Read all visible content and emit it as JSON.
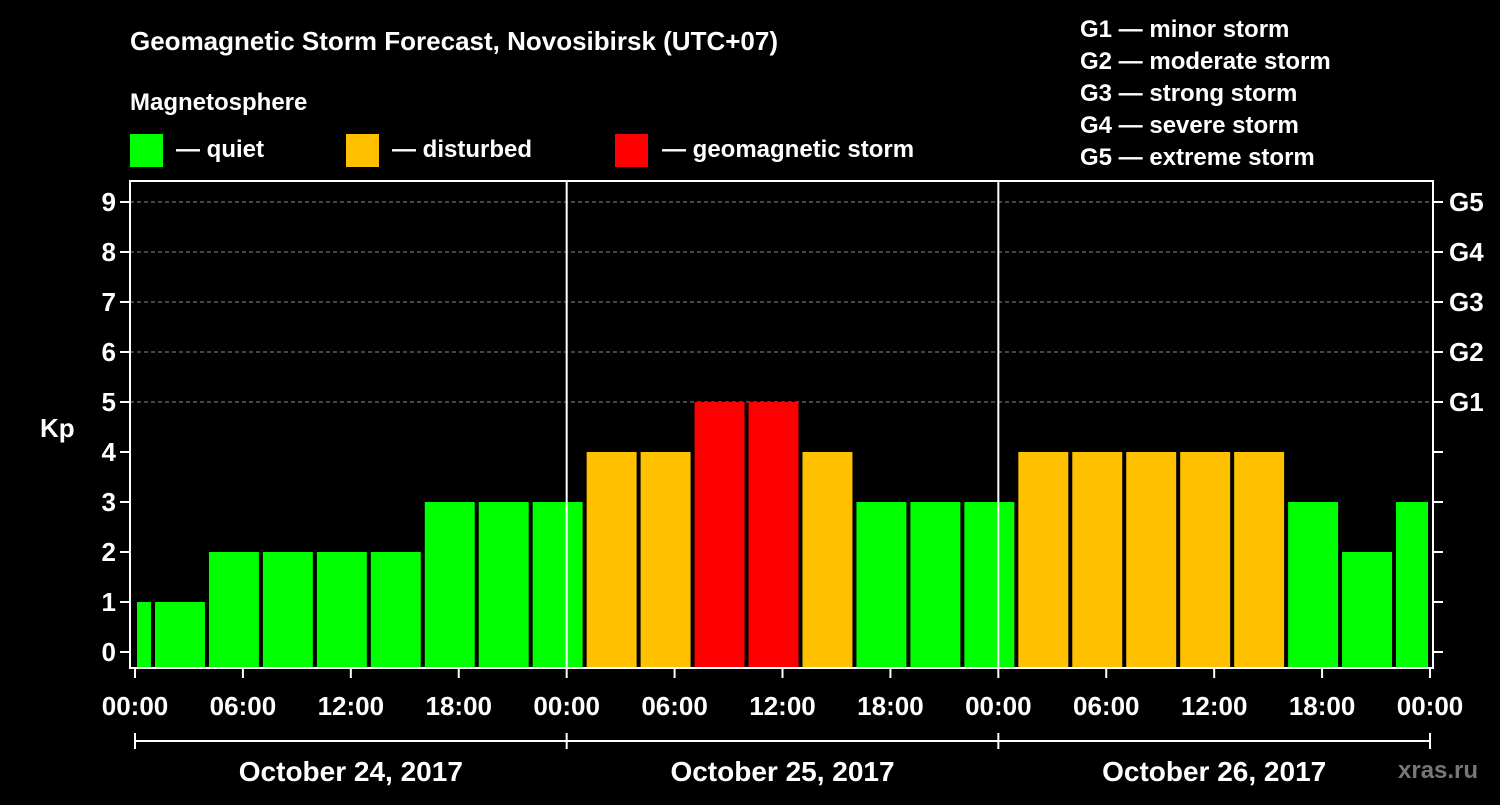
{
  "title": "Geomagnetic Storm Forecast, Novosibirsk (UTC+07)",
  "legend": {
    "heading": "Magnetosphere",
    "items": [
      {
        "label": "— quiet",
        "color": "#00ff00"
      },
      {
        "label": "— disturbed",
        "color": "#ffc000"
      },
      {
        "label": "— geomagnetic storm",
        "color": "#ff0000"
      }
    ]
  },
  "storm_scale": [
    "G1 — minor storm",
    "G2 — moderate storm",
    "G3 — strong storm",
    "G4 — severe storm",
    "G5 — extreme storm"
  ],
  "watermark": "xras.ru",
  "chart_data": {
    "type": "bar",
    "ylabel": "Kp",
    "ylim": [
      0,
      9
    ],
    "yticks": [
      0,
      1,
      2,
      3,
      4,
      5,
      6,
      7,
      8,
      9
    ],
    "right_axis_ticks": [
      {
        "kp": 5,
        "label": "G1"
      },
      {
        "kp": 6,
        "label": "G2"
      },
      {
        "kp": 7,
        "label": "G3"
      },
      {
        "kp": 8,
        "label": "G4"
      },
      {
        "kp": 9,
        "label": "G5"
      }
    ],
    "grid": "horizontal dashed at Kp 5-9",
    "x_tick_labels": [
      "00:00",
      "06:00",
      "12:00",
      "18:00",
      "00:00",
      "06:00",
      "12:00",
      "18:00",
      "00:00",
      "06:00",
      "12:00",
      "18:00",
      "00:00"
    ],
    "x_tick_hours": [
      0,
      6,
      12,
      18,
      24,
      30,
      36,
      42,
      48,
      54,
      60,
      66,
      72
    ],
    "x_range_hours": [
      0,
      72
    ],
    "days": [
      "October 24, 2017",
      "October 25, 2017",
      "October 26, 2017"
    ],
    "bars": [
      {
        "start_hour": 0,
        "end_hour": 1,
        "kp": 1,
        "status": "quiet"
      },
      {
        "start_hour": 1,
        "end_hour": 4,
        "kp": 1,
        "status": "quiet"
      },
      {
        "start_hour": 4,
        "end_hour": 7,
        "kp": 2,
        "status": "quiet"
      },
      {
        "start_hour": 7,
        "end_hour": 10,
        "kp": 2,
        "status": "quiet"
      },
      {
        "start_hour": 10,
        "end_hour": 13,
        "kp": 2,
        "status": "quiet"
      },
      {
        "start_hour": 13,
        "end_hour": 16,
        "kp": 2,
        "status": "quiet"
      },
      {
        "start_hour": 16,
        "end_hour": 19,
        "kp": 3,
        "status": "quiet"
      },
      {
        "start_hour": 19,
        "end_hour": 22,
        "kp": 3,
        "status": "quiet"
      },
      {
        "start_hour": 22,
        "end_hour": 25,
        "kp": 3,
        "status": "quiet"
      },
      {
        "start_hour": 25,
        "end_hour": 28,
        "kp": 4,
        "status": "disturbed"
      },
      {
        "start_hour": 28,
        "end_hour": 31,
        "kp": 4,
        "status": "disturbed"
      },
      {
        "start_hour": 31,
        "end_hour": 34,
        "kp": 5,
        "status": "storm"
      },
      {
        "start_hour": 34,
        "end_hour": 37,
        "kp": 5,
        "status": "storm"
      },
      {
        "start_hour": 37,
        "end_hour": 40,
        "kp": 4,
        "status": "disturbed"
      },
      {
        "start_hour": 40,
        "end_hour": 43,
        "kp": 3,
        "status": "quiet"
      },
      {
        "start_hour": 43,
        "end_hour": 46,
        "kp": 3,
        "status": "quiet"
      },
      {
        "start_hour": 46,
        "end_hour": 49,
        "kp": 3,
        "status": "quiet"
      },
      {
        "start_hour": 49,
        "end_hour": 52,
        "kp": 4,
        "status": "disturbed"
      },
      {
        "start_hour": 52,
        "end_hour": 55,
        "kp": 4,
        "status": "disturbed"
      },
      {
        "start_hour": 55,
        "end_hour": 58,
        "kp": 4,
        "status": "disturbed"
      },
      {
        "start_hour": 58,
        "end_hour": 61,
        "kp": 4,
        "status": "disturbed"
      },
      {
        "start_hour": 61,
        "end_hour": 64,
        "kp": 4,
        "status": "disturbed"
      },
      {
        "start_hour": 64,
        "end_hour": 67,
        "kp": 3,
        "status": "quiet"
      },
      {
        "start_hour": 67,
        "end_hour": 70,
        "kp": 2,
        "status": "quiet"
      },
      {
        "start_hour": 70,
        "end_hour": 72,
        "kp": 3,
        "status": "quiet"
      }
    ],
    "status_colors": {
      "quiet": "#00ff00",
      "disturbed": "#ffc000",
      "storm": "#ff0000"
    }
  }
}
